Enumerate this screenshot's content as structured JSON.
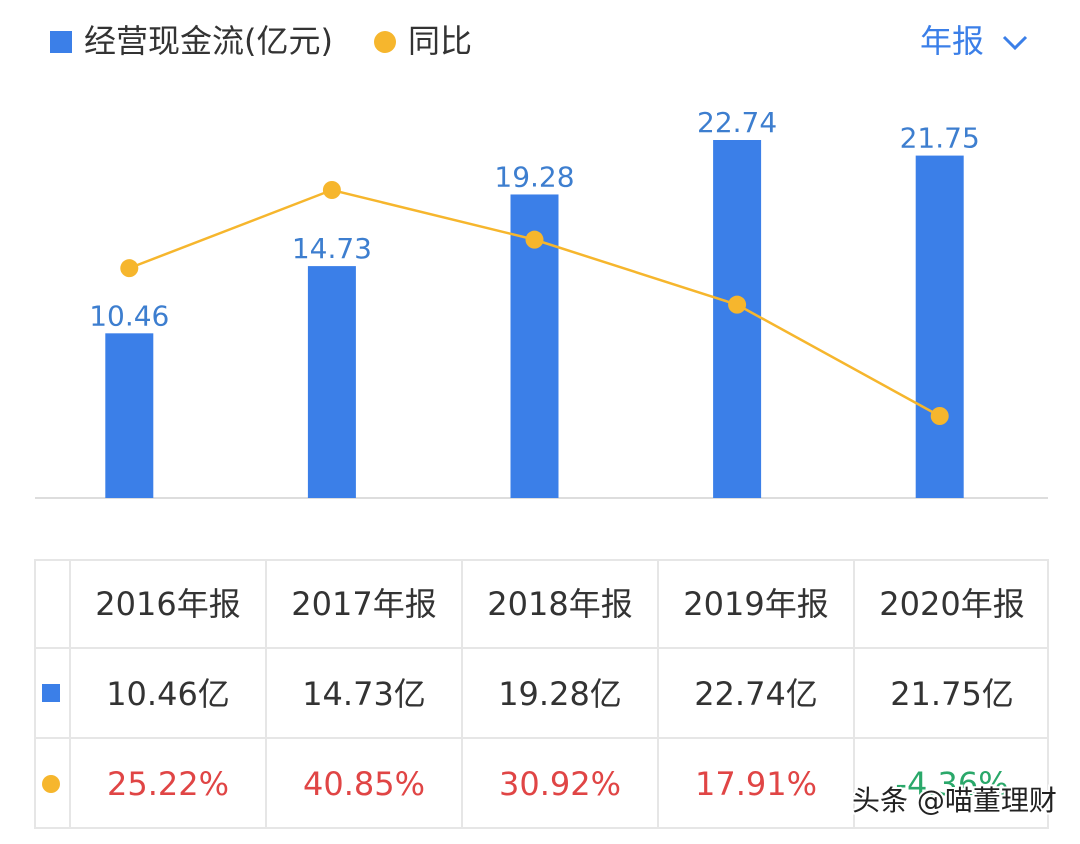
{
  "chart_data": {
    "type": "bar",
    "categories": [
      "2016年报",
      "2017年报",
      "2018年报",
      "2019年报",
      "2020年报"
    ],
    "series": [
      {
        "name": "经营现金流(亿元)",
        "color": "#3b7fe8",
        "values": [
          10.46,
          14.73,
          19.28,
          22.74,
          21.75
        ],
        "value_labels": [
          "10.46亿",
          "14.73亿",
          "19.28亿",
          "22.74亿",
          "21.75亿"
        ]
      },
      {
        "name": "同比",
        "color": "#f6b62d",
        "values": [
          25.22,
          40.85,
          30.92,
          17.91,
          -4.36
        ],
        "axis": "y2",
        "value_labels": [
          "25.22%",
          "40.85%",
          "30.92%",
          "17.91%",
          "-4.36%"
        ]
      }
    ]
  },
  "period_selector": "年报",
  "watermark": "头条 @喵董理财"
}
